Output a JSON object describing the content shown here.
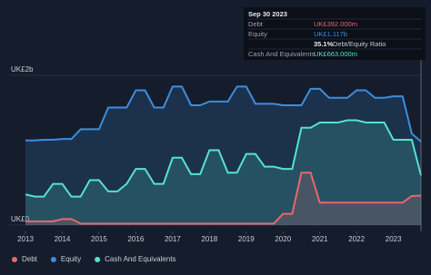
{
  "chart_data": {
    "type": "area",
    "ylim": [
      0,
      2
    ],
    "yticks": [
      {
        "value": 0,
        "label": "UK£0"
      },
      {
        "value": 2,
        "label": "UK£2b"
      }
    ],
    "xlim": [
      2013,
      2023.75
    ],
    "xticks": [
      2013,
      2014,
      2015,
      2016,
      2017,
      2018,
      2019,
      2020,
      2021,
      2022,
      2023
    ],
    "x": [
      2013,
      2013.25,
      2013.5,
      2013.75,
      2014,
      2014.25,
      2014.5,
      2014.75,
      2015,
      2015.25,
      2015.5,
      2015.75,
      2016,
      2016.25,
      2016.5,
      2016.75,
      2017,
      2017.25,
      2017.5,
      2017.75,
      2018,
      2018.25,
      2018.5,
      2018.75,
      2019,
      2019.25,
      2019.5,
      2019.75,
      2020,
      2020.25,
      2020.5,
      2020.75,
      2021,
      2021.25,
      2021.5,
      2021.75,
      2022,
      2022.25,
      2022.5,
      2022.75,
      2023,
      2023.25,
      2023.5,
      2023.75
    ],
    "series": [
      {
        "name": "Equity",
        "color": "#3b8ede",
        "values": [
          1.13,
          1.13,
          1.14,
          1.14,
          1.15,
          1.15,
          1.28,
          1.28,
          1.28,
          1.57,
          1.57,
          1.57,
          1.8,
          1.8,
          1.57,
          1.57,
          1.85,
          1.85,
          1.6,
          1.6,
          1.65,
          1.65,
          1.65,
          1.85,
          1.85,
          1.62,
          1.62,
          1.62,
          1.6,
          1.6,
          1.6,
          1.82,
          1.82,
          1.7,
          1.7,
          1.7,
          1.8,
          1.8,
          1.7,
          1.7,
          1.72,
          1.72,
          1.22,
          1.117
        ]
      },
      {
        "name": "Cash And Equivalents",
        "color": "#55e3cb",
        "values": [
          0.41,
          0.38,
          0.38,
          0.55,
          0.55,
          0.38,
          0.38,
          0.6,
          0.6,
          0.45,
          0.45,
          0.55,
          0.75,
          0.75,
          0.55,
          0.55,
          0.9,
          0.9,
          0.68,
          0.68,
          1.0,
          1.0,
          0.7,
          0.7,
          0.95,
          0.95,
          0.78,
          0.78,
          0.75,
          0.75,
          1.3,
          1.3,
          1.37,
          1.37,
          1.37,
          1.4,
          1.4,
          1.37,
          1.37,
          1.37,
          1.14,
          1.14,
          1.14,
          0.663
        ]
      },
      {
        "name": "Debt",
        "color": "#e8686a",
        "values": [
          0.05,
          0.05,
          0.05,
          0.05,
          0.08,
          0.08,
          0.02,
          0.02,
          0.02,
          0.02,
          0.02,
          0.02,
          0.02,
          0.02,
          0.02,
          0.02,
          0.02,
          0.02,
          0.02,
          0.02,
          0.02,
          0.02,
          0.02,
          0.02,
          0.02,
          0.02,
          0.02,
          0.02,
          0.15,
          0.15,
          0.7,
          0.7,
          0.3,
          0.3,
          0.3,
          0.3,
          0.3,
          0.3,
          0.3,
          0.3,
          0.3,
          0.3,
          0.39,
          0.392
        ]
      }
    ],
    "legend_order": [
      2,
      0,
      1
    ]
  },
  "tooltip": {
    "date": "Sep 30 2023",
    "rows": [
      [
        "Debt",
        "UK£392.000m"
      ],
      [
        "Equity",
        "UK£1.117b"
      ],
      [
        "35.1%",
        "Debt/Equity Ratio"
      ],
      [
        "Cash And Equivalents",
        "UK£663.000m"
      ]
    ]
  }
}
